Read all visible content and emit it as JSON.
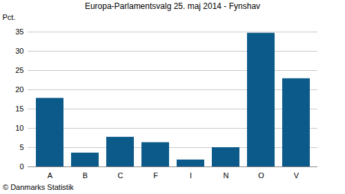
{
  "chart_data": {
    "type": "bar",
    "title": "Europa-Parlamentsvalg 25. maj 2014 - Fynshav",
    "y_label": "Pct.",
    "caption": "© Danmarks Statistik",
    "categories": [
      "A",
      "B",
      "C",
      "F",
      "I",
      "N",
      "O",
      "V"
    ],
    "values": [
      17.8,
      3.6,
      7.7,
      6.3,
      1.8,
      5.0,
      34.7,
      22.9
    ],
    "color": "#0b5a8a",
    "ylim": [
      0,
      35
    ],
    "yticks": [
      0,
      5,
      10,
      15,
      20,
      25,
      30,
      35
    ],
    "grid": true
  }
}
